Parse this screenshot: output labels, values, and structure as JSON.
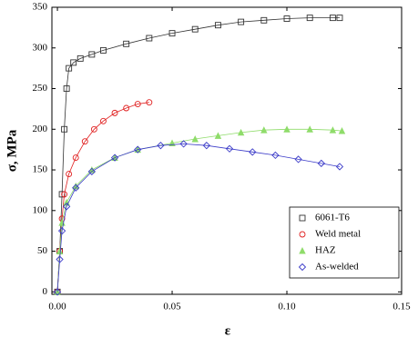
{
  "chart_data": {
    "type": "scatter",
    "x_label": "ε",
    "y_label": "σ, MPa",
    "xlim": [
      -0.0024,
      0.15
    ],
    "ylim": [
      -3,
      350
    ],
    "xticks": [
      {
        "value": 0,
        "label": "0.00"
      },
      0.05,
      {
        "value": 0.1,
        "label": "0.10"
      },
      {
        "value": 0.15,
        "label": "0.15"
      }
    ],
    "yticks": [
      0,
      50,
      100,
      150,
      200,
      250,
      300,
      350
    ],
    "legend": "lower right",
    "series": [
      {
        "name": "6061-T6",
        "color": "#333333",
        "marker": "square",
        "x": [
          0,
          0.001,
          0.002,
          0.003,
          0.004,
          0.005,
          0.007,
          0.01,
          0.015,
          0.02,
          0.03,
          0.04,
          0.05,
          0.06,
          0.07,
          0.08,
          0.09,
          0.1,
          0.11,
          0.12,
          0.123
        ],
        "values": [
          0,
          50,
          120,
          200,
          250,
          275,
          282,
          287,
          292,
          297,
          305,
          312,
          318,
          323,
          328,
          332,
          334,
          336,
          337,
          337,
          337
        ]
      },
      {
        "name": "Weld metal",
        "color": "#e02020",
        "marker": "circle",
        "x": [
          0,
          0.001,
          0.002,
          0.003,
          0.005,
          0.008,
          0.012,
          0.016,
          0.02,
          0.025,
          0.03,
          0.035,
          0.04
        ],
        "values": [
          0,
          50,
          90,
          120,
          145,
          165,
          185,
          200,
          210,
          220,
          226,
          231,
          233
        ]
      },
      {
        "name": "HAZ",
        "color": "#8fdc6a",
        "marker": "triangle",
        "x": [
          0,
          0.001,
          0.002,
          0.004,
          0.008,
          0.015,
          0.025,
          0.035,
          0.05,
          0.06,
          0.07,
          0.08,
          0.09,
          0.1,
          0.11,
          0.12,
          0.124
        ],
        "values": [
          0,
          50,
          85,
          110,
          130,
          150,
          165,
          175,
          183,
          188,
          192,
          196,
          199,
          200,
          200,
          199,
          198
        ]
      },
      {
        "name": "As-welded",
        "color": "#3a3ac8",
        "marker": "diamond",
        "x": [
          0,
          0.001,
          0.002,
          0.004,
          0.008,
          0.015,
          0.025,
          0.035,
          0.045,
          0.055,
          0.065,
          0.075,
          0.085,
          0.095,
          0.105,
          0.115,
          0.123
        ],
        "values": [
          0,
          40,
          75,
          105,
          128,
          148,
          165,
          175,
          180,
          182,
          180,
          176,
          172,
          168,
          163,
          158,
          154
        ]
      }
    ]
  }
}
